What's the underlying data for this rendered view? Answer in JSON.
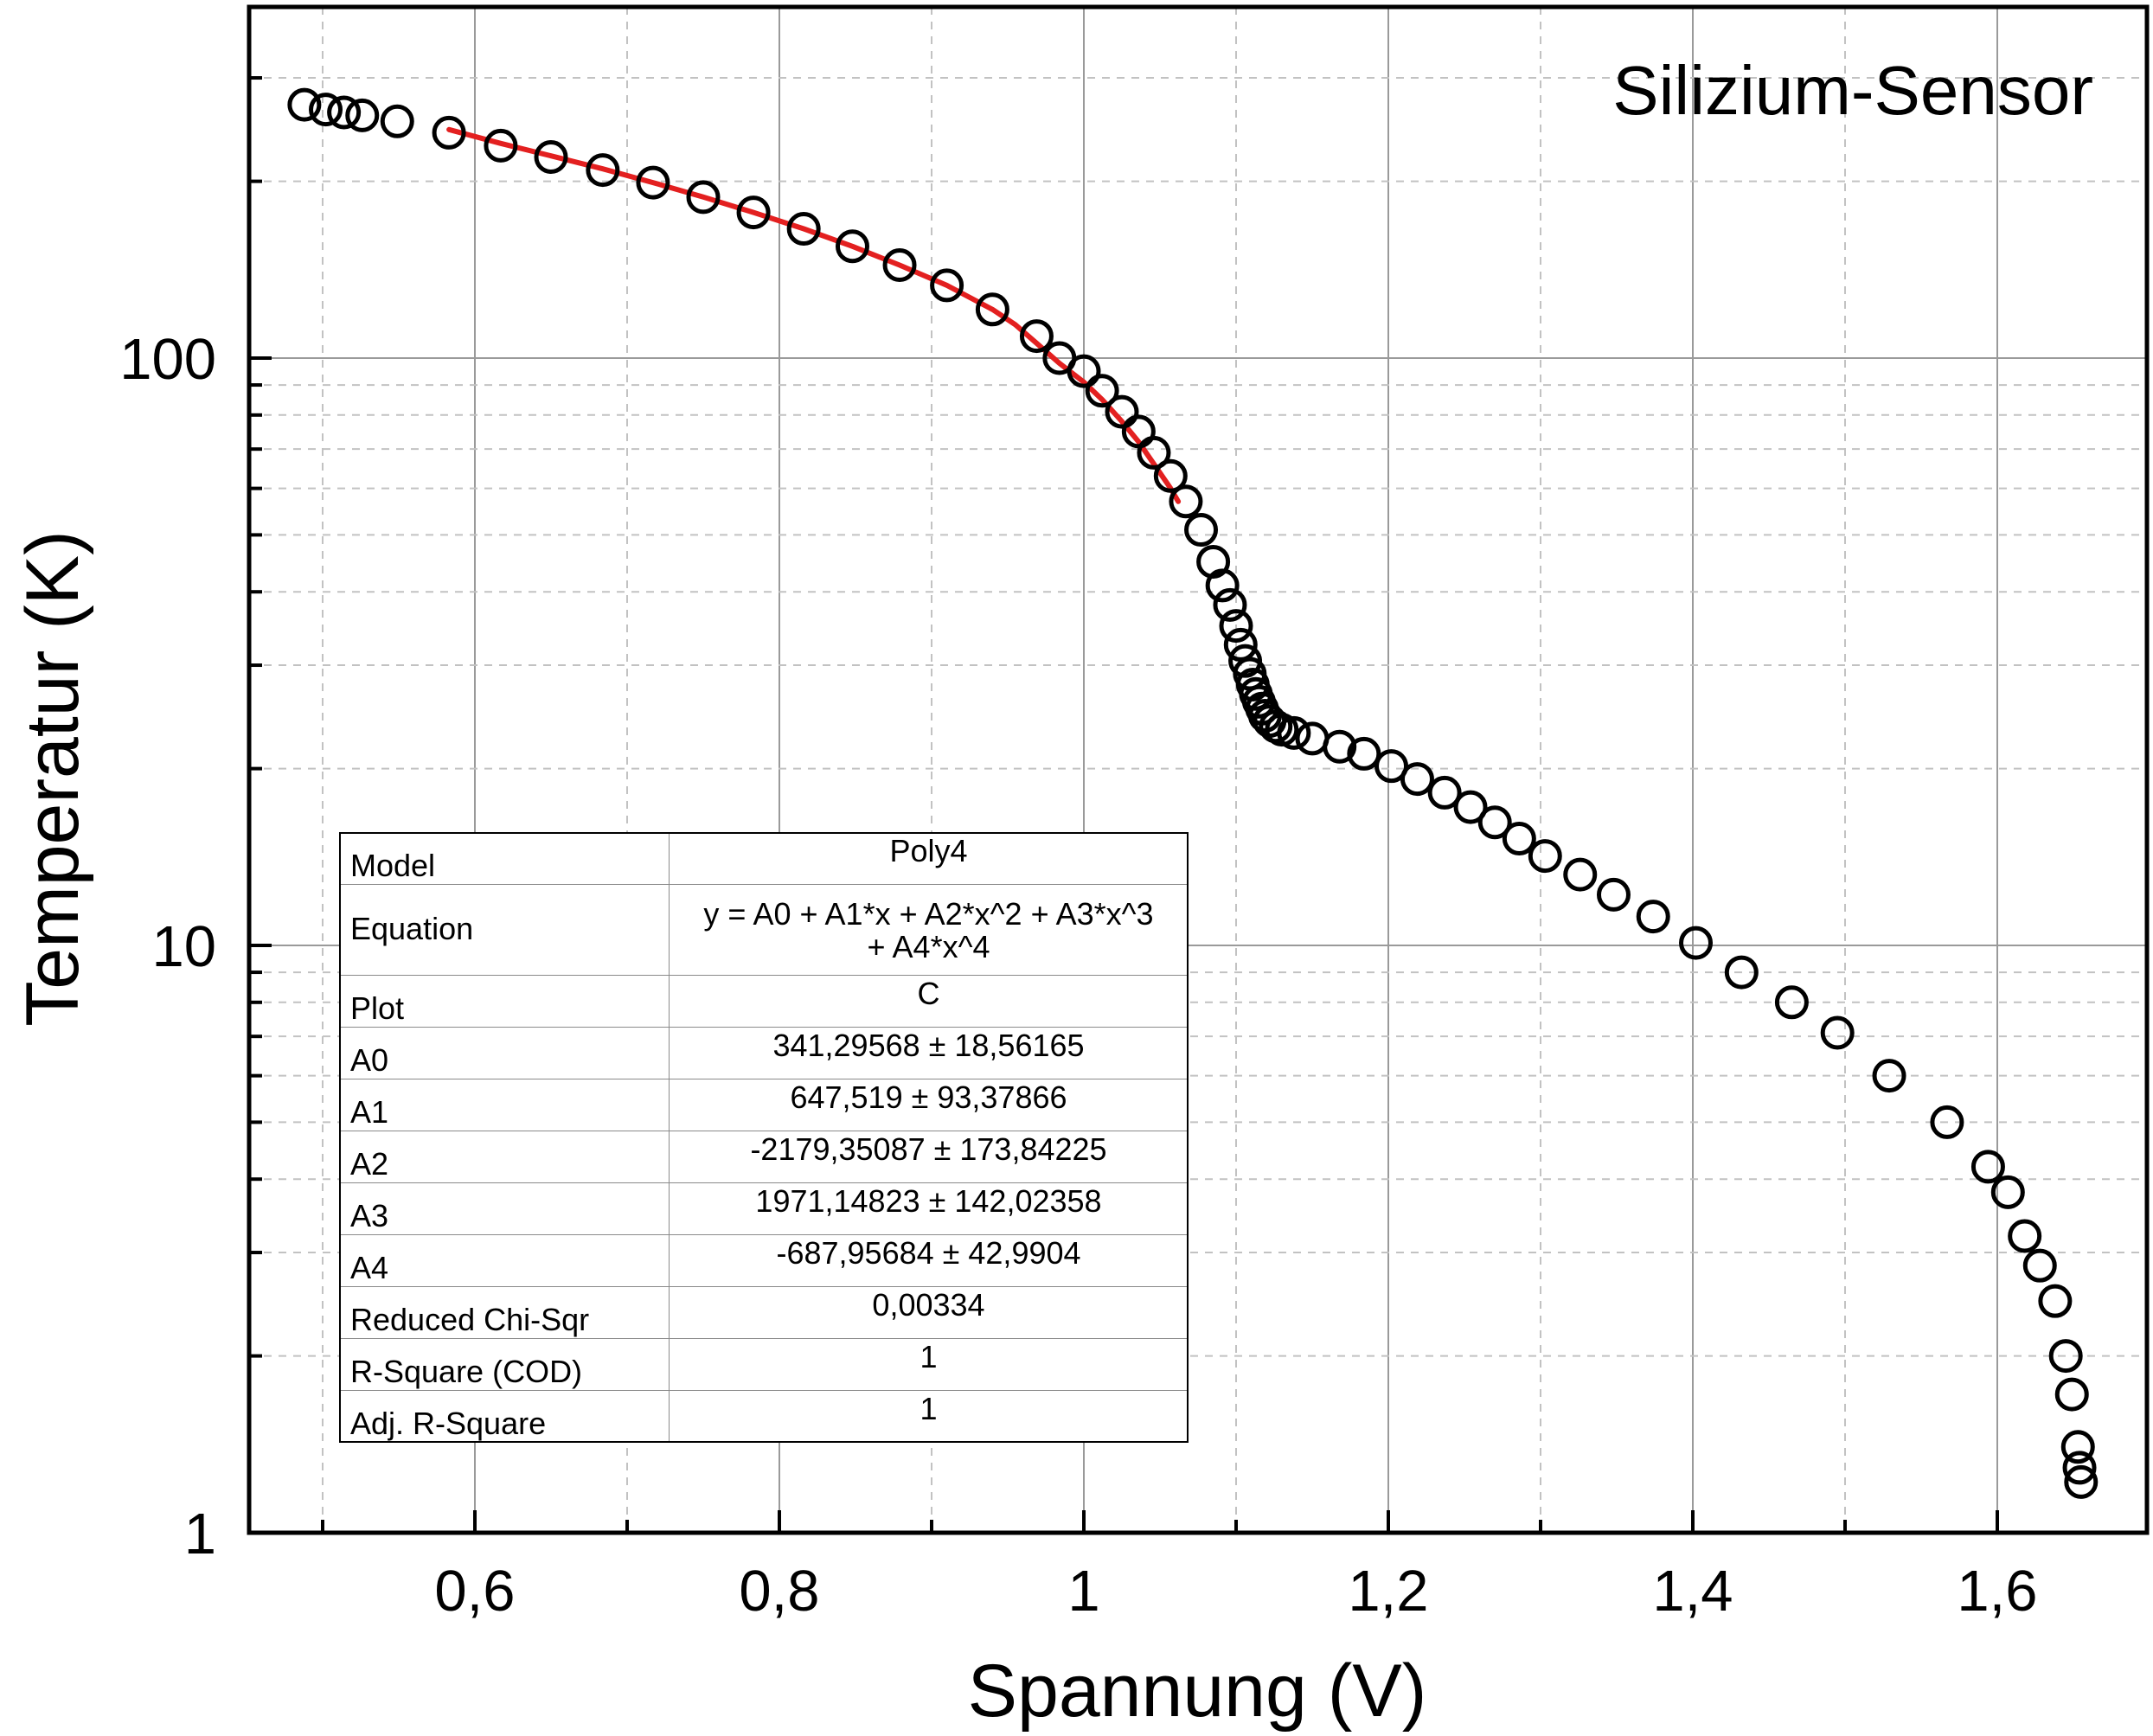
{
  "chart_data": {
    "type": "scatter",
    "title": "Silizium-Sensor",
    "xlabel": "Spannung (V)",
    "ylabel": "Temperatur (K)",
    "xlim": [
      0.45,
      1.7
    ],
    "ylim": [
      1,
      300
    ],
    "yscale": "log",
    "grid": true,
    "x_ticks": [
      {
        "value": 0.6,
        "label": "0,6"
      },
      {
        "value": 0.8,
        "label": "0,8"
      },
      {
        "value": 1.0,
        "label": "1"
      },
      {
        "value": 1.2,
        "label": "1,2"
      },
      {
        "value": 1.4,
        "label": "1,4"
      },
      {
        "value": 1.6,
        "label": "1,6"
      }
    ],
    "y_ticks": [
      {
        "value": 1,
        "label": "1"
      },
      {
        "value": 10,
        "label": "10"
      },
      {
        "value": 100,
        "label": "100"
      }
    ],
    "series": [
      {
        "name": "",
        "marker": "open-circle",
        "color": "#000000",
        "points": [
          [
            0.488,
            270
          ],
          [
            0.502,
            265
          ],
          [
            0.514,
            262
          ],
          [
            0.526,
            259
          ],
          [
            0.549,
            253
          ],
          [
            0.583,
            242
          ],
          [
            0.617,
            230
          ],
          [
            0.65,
            220
          ],
          [
            0.684,
            209
          ],
          [
            0.717,
            199
          ],
          [
            0.75,
            188
          ],
          [
            0.783,
            177
          ],
          [
            0.816,
            166
          ],
          [
            0.848,
            155
          ],
          [
            0.879,
            144
          ],
          [
            0.91,
            133
          ],
          [
            0.94,
            121
          ],
          [
            0.969,
            109
          ],
          [
            0.984,
            100
          ],
          [
            1.0,
            95
          ],
          [
            1.012,
            88
          ],
          [
            1.025,
            81
          ],
          [
            1.036,
            75
          ],
          [
            1.046,
            69
          ],
          [
            1.057,
            63
          ],
          [
            1.067,
            57
          ],
          [
            1.077,
            51
          ],
          [
            1.085,
            45
          ],
          [
            1.091,
            41
          ],
          [
            1.096,
            38
          ],
          [
            1.1,
            35
          ],
          [
            1.103,
            32.5
          ],
          [
            1.106,
            30.5
          ],
          [
            1.109,
            29
          ],
          [
            1.111,
            27.8
          ],
          [
            1.113,
            26.8
          ],
          [
            1.115,
            26
          ],
          [
            1.117,
            25.3
          ],
          [
            1.119,
            24.6
          ],
          [
            1.122,
            24.1
          ],
          [
            1.126,
            23.6
          ],
          [
            1.13,
            23.3
          ],
          [
            1.138,
            23.0
          ],
          [
            1.15,
            22.5
          ],
          [
            1.168,
            21.8
          ],
          [
            1.184,
            21.2
          ],
          [
            1.202,
            20.2
          ],
          [
            1.219,
            19.2
          ],
          [
            1.237,
            18.2
          ],
          [
            1.254,
            17.2
          ],
          [
            1.27,
            16.2
          ],
          [
            1.286,
            15.2
          ],
          [
            1.303,
            14.2
          ],
          [
            1.326,
            13.2
          ],
          [
            1.348,
            12.2
          ],
          [
            1.374,
            11.2
          ],
          [
            1.402,
            10.1
          ],
          [
            1.432,
            9.0
          ],
          [
            1.465,
            8.0
          ],
          [
            1.495,
            7.1
          ],
          [
            1.529,
            6.0
          ],
          [
            1.567,
            5.0
          ],
          [
            1.594,
            4.2
          ],
          [
            1.607,
            3.8
          ],
          [
            1.618,
            3.2
          ],
          [
            1.628,
            2.85
          ],
          [
            1.638,
            2.48
          ],
          [
            1.645,
            2.0
          ],
          [
            1.649,
            1.72
          ],
          [
            1.653,
            1.4
          ],
          [
            1.654,
            1.29
          ],
          [
            1.655,
            1.22
          ]
        ]
      }
    ],
    "fit": {
      "color": "#e32020",
      "points": [
        [
          0.583,
          245
        ],
        [
          0.617,
          232
        ],
        [
          0.65,
          221
        ],
        [
          0.684,
          210
        ],
        [
          0.717,
          199
        ],
        [
          0.75,
          188
        ],
        [
          0.783,
          177
        ],
        [
          0.816,
          166
        ],
        [
          0.848,
          155
        ],
        [
          0.879,
          144
        ],
        [
          0.91,
          133
        ],
        [
          0.94,
          121
        ],
        [
          0.955,
          114
        ],
        [
          0.969,
          106
        ],
        [
          0.984,
          98
        ],
        [
          1.0,
          91
        ],
        [
          1.012,
          85
        ],
        [
          1.025,
          78
        ],
        [
          1.036,
          72
        ],
        [
          1.046,
          66
        ],
        [
          1.057,
          60
        ],
        [
          1.062,
          57
        ]
      ]
    }
  },
  "fit_table": {
    "rows": [
      {
        "key": "Model",
        "value": "Poly4"
      },
      {
        "key": "Equation",
        "value": "y = A0 + A1*x + A2*x^2 + A3*x^3",
        "value2": "+ A4*x^4"
      },
      {
        "key": "Plot",
        "value": "C"
      },
      {
        "key": "A0",
        "value": "341,29568 ± 18,56165"
      },
      {
        "key": "A1",
        "value": "647,519 ± 93,37866"
      },
      {
        "key": "A2",
        "value": "-2179,35087 ± 173,84225"
      },
      {
        "key": "A3",
        "value": "1971,14823 ± 142,02358"
      },
      {
        "key": "A4",
        "value": "-687,95684 ± 42,9904"
      },
      {
        "key": "Reduced Chi-Sqr",
        "value": "0,00334"
      },
      {
        "key": "R-Square (COD)",
        "value": "1"
      },
      {
        "key": "Adj. R-Square",
        "value": "1"
      }
    ]
  }
}
